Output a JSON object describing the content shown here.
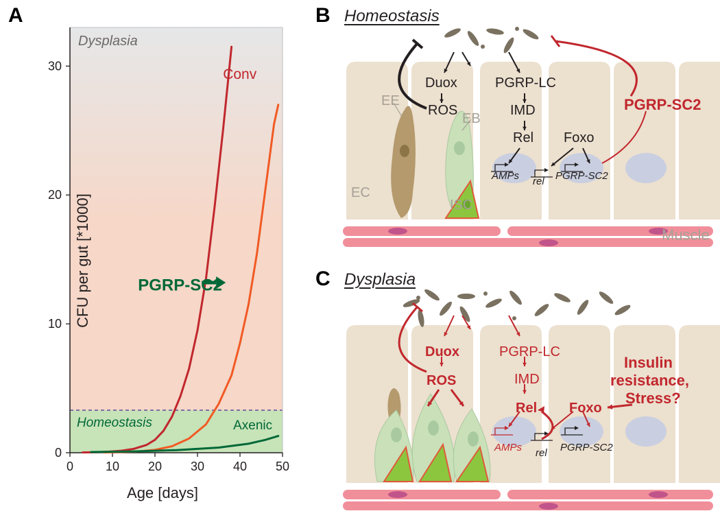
{
  "panelA": {
    "label": "A",
    "corner_text": "Dysplasia",
    "homeostasis_text": "Homeostasis",
    "axenic_text": "Axenic",
    "conv_text": "Conv",
    "pgrp_arrow_text": "PGRP-SC2",
    "y_label": "CFU per gut [*1000]",
    "x_label": "Age [days]",
    "xlim": [
      0,
      50
    ],
    "ylim": [
      0,
      33
    ],
    "xticks": [
      0,
      10,
      20,
      30,
      40,
      50
    ],
    "yticks": [
      0,
      10,
      20,
      30
    ],
    "homeostasis_threshold": 3.3,
    "gradient_top": "#e6e7e8",
    "gradient_mid": "#f6d7c8",
    "gradient_bottom_line": "#654a9b",
    "homeostasis_band_color": "#c7e3b8",
    "series": {
      "conv": {
        "color": "#c1272d",
        "stroke_width": 3,
        "points": [
          [
            3,
            0.02
          ],
          [
            6,
            0.04
          ],
          [
            9,
            0.08
          ],
          [
            12,
            0.15
          ],
          [
            15,
            0.3
          ],
          [
            18,
            0.6
          ],
          [
            20,
            1.0
          ],
          [
            22,
            1.7
          ],
          [
            24,
            2.8
          ],
          [
            26,
            4.4
          ],
          [
            28,
            6.5
          ],
          [
            30,
            9.5
          ],
          [
            32,
            13.5
          ],
          [
            34,
            19.0
          ],
          [
            36,
            25.0
          ],
          [
            38,
            31.5
          ]
        ]
      },
      "pgrp": {
        "color": "#f15a24",
        "stroke_width": 3,
        "points": [
          [
            8,
            0.02
          ],
          [
            12,
            0.05
          ],
          [
            16,
            0.1
          ],
          [
            20,
            0.22
          ],
          [
            24,
            0.5
          ],
          [
            28,
            1.1
          ],
          [
            32,
            2.2
          ],
          [
            35,
            3.8
          ],
          [
            38,
            6.0
          ],
          [
            40,
            8.5
          ],
          [
            42,
            11.5
          ],
          [
            44,
            15.5
          ],
          [
            46,
            20.5
          ],
          [
            48,
            25.5
          ],
          [
            49,
            27.0
          ]
        ]
      },
      "axenic": {
        "color": "#006837",
        "stroke_width": 3,
        "points": [
          [
            5,
            0.05
          ],
          [
            15,
            0.1
          ],
          [
            25,
            0.2
          ],
          [
            35,
            0.4
          ],
          [
            42,
            0.7
          ],
          [
            46,
            1.0
          ],
          [
            49,
            1.3
          ]
        ]
      }
    },
    "pgrp_arrow_color": "#006837",
    "tick_fontsize": 18,
    "axis_color": "#231f20"
  },
  "panelB": {
    "label": "B",
    "title": "Homeostasis",
    "labels": {
      "duox": "Duox",
      "ros": "ROS",
      "pgrp_lc": "PGRP-LC",
      "imd": "IMD",
      "rel": "Rel",
      "foxo": "Foxo",
      "pgrp_sc2": "PGRP-SC2",
      "amps": "AMPs",
      "rel_gene": "rel",
      "pgrp_sc2_gene": "PGRP-SC2",
      "ee": "EE",
      "eb": "EB",
      "ec": "EC",
      "isc": "ISC",
      "muscle": "Muscle"
    },
    "colors": {
      "ec_fill": "#ece0cf",
      "ee_fill": "#b49a6c",
      "eb_fill": "#c9e0b9",
      "isc_fill": "#8cc63f",
      "isc_stroke": "#e05a3a",
      "nucleus": "#c9cfe0",
      "nucleus_dark": "#a49a8a",
      "muscle_fill": "#f08f9a",
      "muscle_nucleus": "#c1548a",
      "bacteria": "#7a7161",
      "arrow_black": "#231f20",
      "arrow_red": "#c1272d"
    }
  },
  "panelC": {
    "label": "C",
    "title": "Dysplasia",
    "labels": {
      "duox": "Duox",
      "ros": "ROS",
      "pgrp_lc": "PGRP-LC",
      "imd": "IMD",
      "rel": "Rel",
      "foxo": "Foxo",
      "insulin1": "Insulin",
      "insulin2": "resistance,",
      "insulin3": "Stress?",
      "amps": "AMPs",
      "rel_gene": "rel",
      "pgrp_sc2_gene": "PGRP-SC2"
    }
  }
}
